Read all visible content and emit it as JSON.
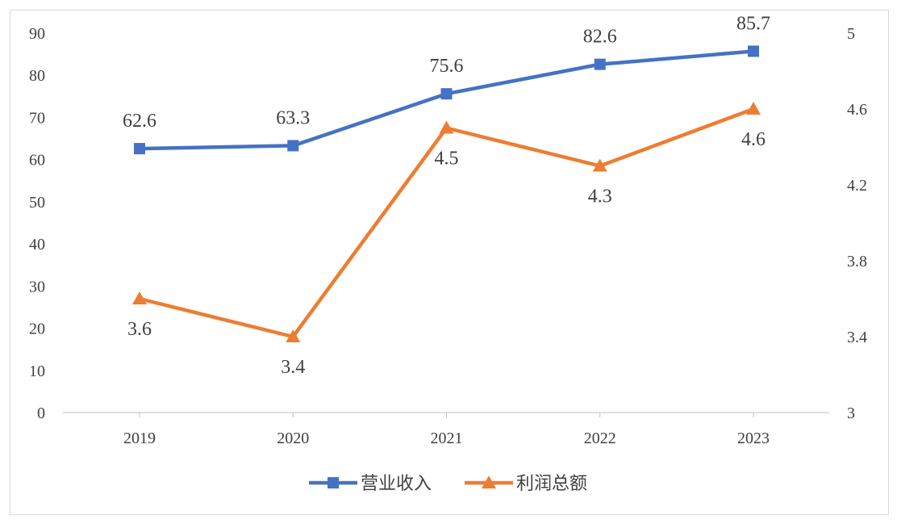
{
  "chart_data": {
    "type": "line",
    "categories": [
      "2019",
      "2020",
      "2021",
      "2022",
      "2023"
    ],
    "series": [
      {
        "name": "营业收入",
        "axis": "left",
        "values": [
          62.6,
          63.3,
          75.6,
          82.6,
          85.7
        ],
        "labels": [
          "62.6",
          "63.3",
          "75.6",
          "82.6",
          "85.7"
        ],
        "color": "#4472c4",
        "marker": "square"
      },
      {
        "name": "利润总额",
        "axis": "right",
        "values": [
          3.6,
          3.4,
          4.5,
          4.3,
          4.6
        ],
        "labels": [
          "3.6",
          "3.4",
          "4.5",
          "4.3",
          "4.6"
        ],
        "color": "#ed7d31",
        "marker": "triangle"
      }
    ],
    "y_left": {
      "min": 0,
      "max": 90,
      "ticks": [
        "0",
        "10",
        "20",
        "30",
        "40",
        "50",
        "60",
        "70",
        "80",
        "90"
      ]
    },
    "y_right": {
      "min": 3,
      "max": 5,
      "ticks": [
        "3",
        "3.4",
        "3.8",
        "4.2",
        "4.6",
        "5"
      ]
    },
    "grid": false,
    "legend": "bottom"
  }
}
